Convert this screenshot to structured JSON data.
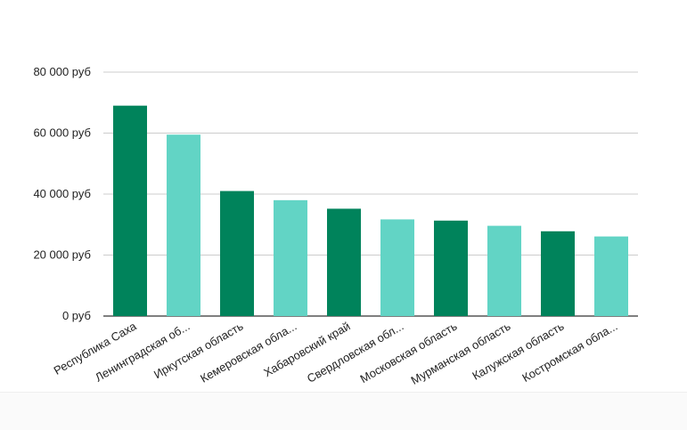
{
  "chart_data": {
    "type": "bar",
    "categories": [
      "Республика Саха",
      "Ленинградская об...",
      "Иркутская область",
      "Кемеровская обла...",
      "Хабаровский край",
      "Свердловская обл...",
      "Московская область",
      "Мурманская область",
      "Калужская область",
      "Костромская обла..."
    ],
    "values": [
      69000,
      59500,
      41000,
      38000,
      35200,
      31700,
      31300,
      29600,
      27800,
      26100
    ],
    "ylim": [
      0,
      80000
    ],
    "yticks": [
      {
        "value": 0,
        "label": "0 руб"
      },
      {
        "value": 20000,
        "label": "20 000 руб"
      },
      {
        "value": 40000,
        "label": "40 000 руб"
      },
      {
        "value": 60000,
        "label": "60 000 руб"
      },
      {
        "value": 80000,
        "label": "80 000 руб"
      }
    ],
    "grid": true,
    "legend": "none",
    "colors": [
      "#00835b",
      "#62d4c5"
    ]
  }
}
